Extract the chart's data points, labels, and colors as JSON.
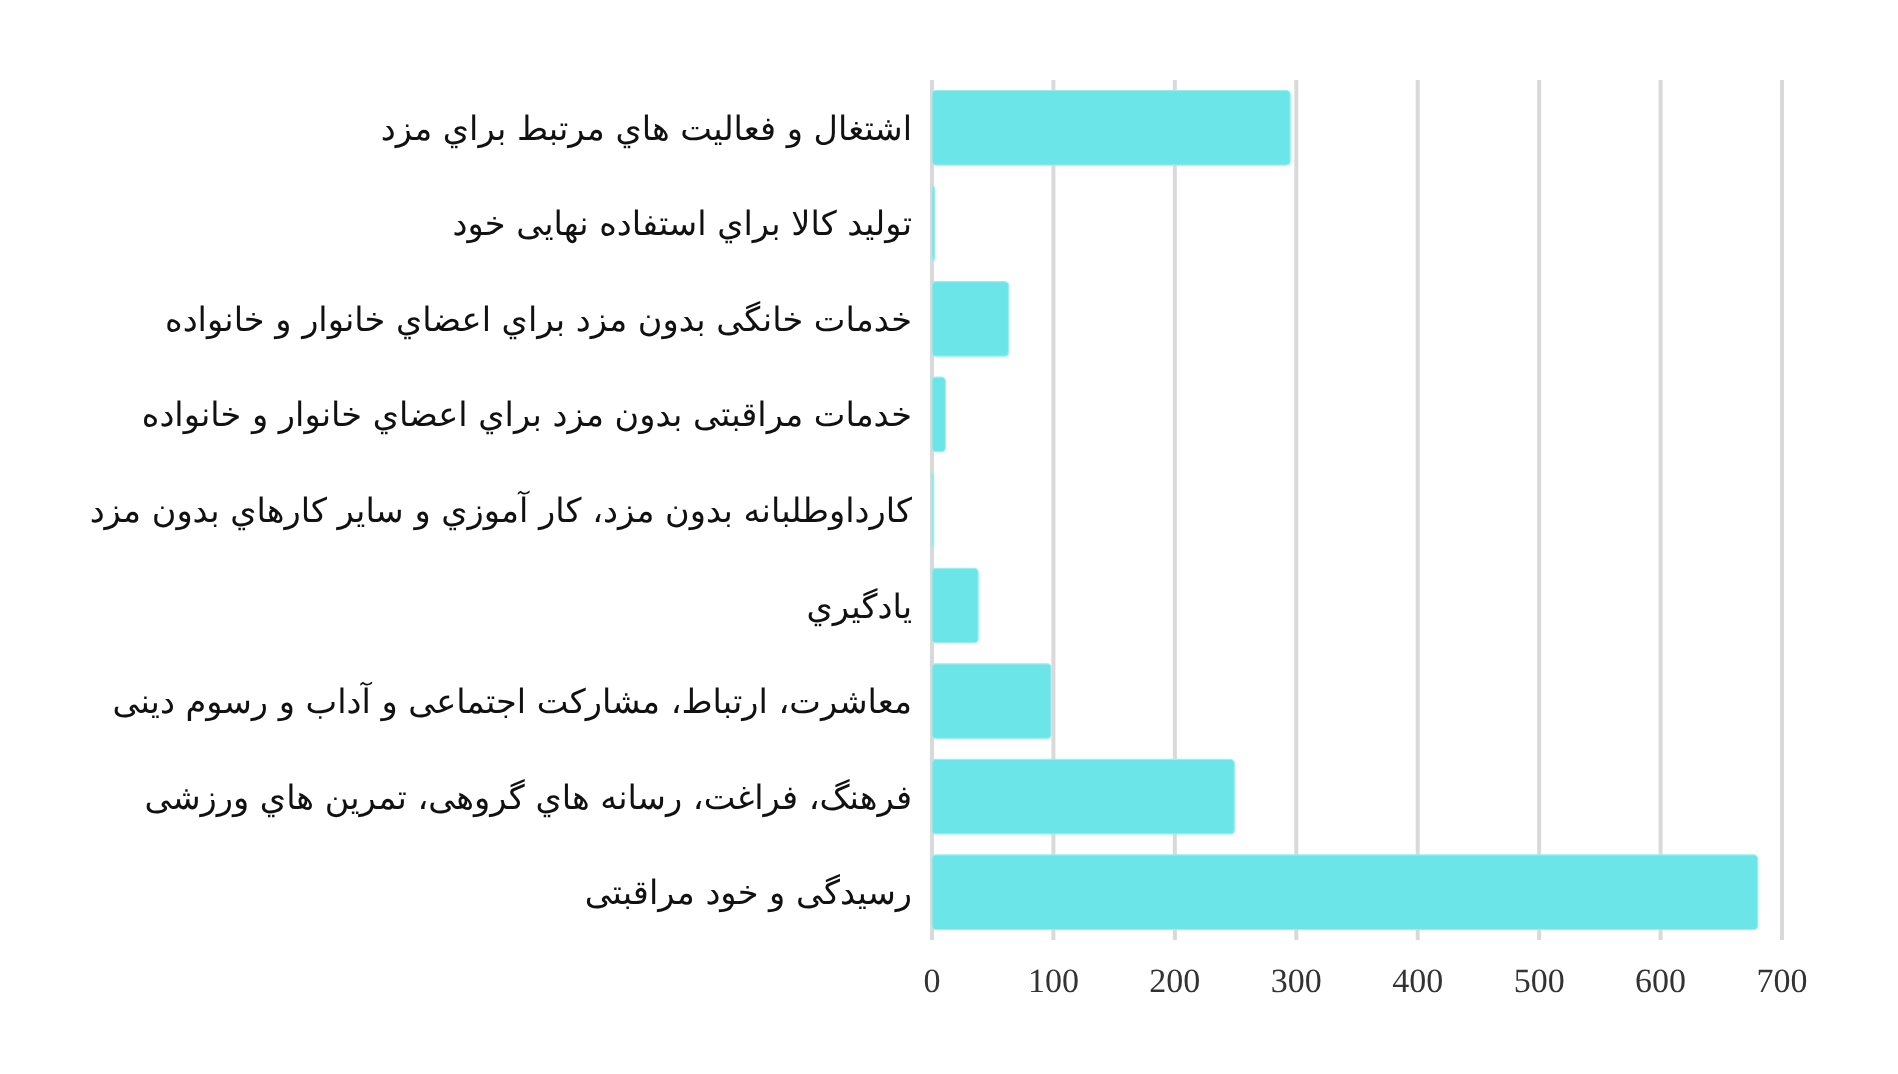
{
  "chart_data": {
    "type": "bar",
    "orientation": "horizontal",
    "categories": [
      "اشتغال و فعالیت هاي مرتبط براي مزد",
      "تولید کالا براي استفاده نهایی خود",
      "خدمات خانگی بدون مزد براي اعضاي خانوار و خانواده",
      "خدمات مراقبتی بدون مزد براي اعضاي خانوار و خانواده",
      "کارداوطلبانه بدون مزد، کار آموزي و سایر کارهاي بدون مزد",
      "یادگیري",
      "معاشرت، ارتباط، مشارکت اجتماعی و آداب و رسوم دینی",
      "فرهنگ، فراغت، رسانه هاي گروهی، تمرین هاي ورزشی",
      "رسیدگی و خود مراقبتی"
    ],
    "values": [
      295,
      2,
      63,
      11,
      1,
      38,
      98,
      249,
      680
    ],
    "color": "#6ce5e8",
    "xlim": [
      0,
      700
    ],
    "xticks": [
      0,
      100,
      200,
      300,
      400,
      500,
      600,
      700
    ],
    "grid": "x"
  }
}
